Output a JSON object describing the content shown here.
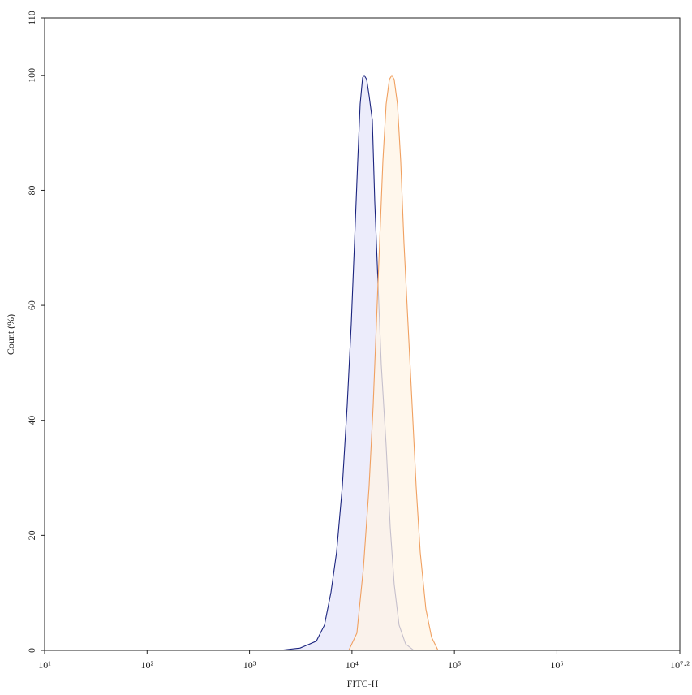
{
  "chart_data": {
    "type": "area",
    "x_label": "FITC-H",
    "y_label": "Count (%)",
    "xscale": "log",
    "xlim": [
      10,
      15848931.92
    ],
    "ylim": [
      0,
      110
    ],
    "xticks": [
      {
        "value": 10,
        "label": "10¹"
      },
      {
        "value": 100,
        "label": "10²"
      },
      {
        "value": 1000,
        "label": "10³"
      },
      {
        "value": 10000,
        "label": "10⁴"
      },
      {
        "value": 100000,
        "label": "10⁵"
      },
      {
        "value": 1000000,
        "label": "10⁶"
      },
      {
        "value": 15848931.92,
        "label": "10⁷·²"
      }
    ],
    "yticks": [
      0,
      20,
      40,
      60,
      80,
      100,
      110
    ],
    "series": [
      {
        "color": "#1a237e",
        "fill": "#e6e6fa",
        "x": [
          1977,
          3120,
          4490,
          5390,
          6240,
          7080,
          8050,
          8980,
          9840,
          10590,
          11380,
          12020,
          12700,
          13180,
          13910,
          14690,
          15800,
          16690,
          17950,
          19310,
          21550,
          23600,
          25820,
          28830,
          33370,
          40070
        ],
        "values": [
          0,
          0.4,
          1.6,
          4.4,
          10.1,
          17.1,
          28.5,
          42.6,
          56.8,
          71,
          85.1,
          95,
          99.6,
          100,
          99.3,
          96.5,
          92.2,
          78,
          63.9,
          49.7,
          35.6,
          21.5,
          11.5,
          4.4,
          1.1,
          0
        ]
      },
      {
        "color": "#f0a060",
        "fill": "#fff4e6",
        "x": [
          9310,
          11170,
          12930,
          14690,
          16100,
          17310,
          18620,
          20030,
          21550,
          23180,
          24490,
          25820,
          27800,
          29900,
          32150,
          35230,
          38650,
          42290,
          46340,
          52620,
          59770,
          69180
        ],
        "values": [
          0,
          3,
          14.3,
          28.5,
          42.6,
          56.8,
          71,
          85.1,
          95,
          99.3,
          100,
          99.3,
          95,
          85.1,
          71,
          56.8,
          42.6,
          28.5,
          17.1,
          7.2,
          2.3,
          0
        ]
      }
    ]
  }
}
